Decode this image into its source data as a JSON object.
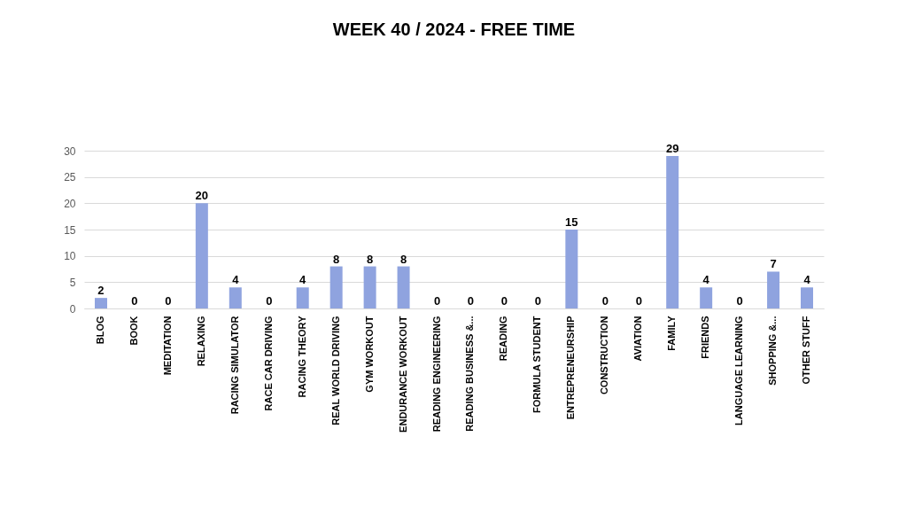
{
  "chart_data": {
    "type": "bar",
    "title": "WEEK  40 / 2024      - FREE TIME",
    "categories": [
      "BLOG",
      "BOOK",
      "MEDITATION",
      "RELAXING",
      "RACING SIMULATOR",
      "RACE CAR DRIVING",
      "RACING THEORY",
      "REAL WORLD DRIVING",
      "GYM WORKOUT",
      "ENDURANCE WORKOUT",
      "READING ENGINEERING",
      "READING BUSINESS &...",
      "READING",
      "FORMULA STUDENT",
      "ENTREPRENEURSHIP",
      "CONSTRUCTION",
      "AVIATION",
      "FAMILY",
      "FRIENDS",
      "LANGUAGE LEARNING",
      "SHOPPING &...",
      "OTHER STUFF"
    ],
    "values": [
      2,
      0,
      0,
      20,
      4,
      0,
      4,
      8,
      8,
      8,
      0,
      0,
      0,
      0,
      15,
      0,
      0,
      29,
      4,
      0,
      7,
      4
    ],
    "color": "#8fa3df",
    "ylim": [
      0,
      30
    ],
    "yticks": [
      0,
      5,
      10,
      15,
      20,
      25,
      30
    ],
    "grid": "y",
    "data_labels": true
  }
}
